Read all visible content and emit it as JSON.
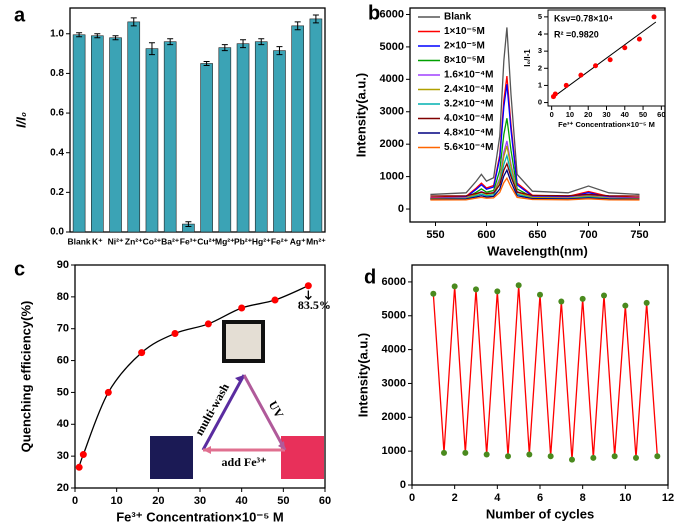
{
  "chart_data": [
    {
      "type": "bar",
      "panel": "a",
      "ylabel": "I/I₀",
      "categories": [
        "Blank",
        "K⁺",
        "Ni²⁺",
        "Zn²⁺",
        "Co²⁺",
        "Ba²⁺",
        "Fe³⁺",
        "Cu²⁺",
        "Mg²⁺",
        "Pb²⁺",
        "Hg²⁺",
        "Fe²⁺",
        "Ag⁺",
        "Mn²⁺"
      ],
      "values": [
        0.995,
        0.99,
        0.98,
        1.06,
        0.925,
        0.96,
        0.04,
        0.85,
        0.93,
        0.95,
        0.96,
        0.915,
        1.04,
        1.075
      ],
      "errors": [
        0.01,
        0.01,
        0.01,
        0.02,
        0.03,
        0.015,
        0.012,
        0.01,
        0.015,
        0.02,
        0.015,
        0.02,
        0.02,
        0.02
      ],
      "color": "#3ba3b5",
      "ylim": [
        0,
        1.13
      ],
      "yticks": [
        {
          "value": 0,
          "label": "0.0"
        },
        0.2,
        0.4,
        0.6,
        0.8,
        {
          "value": 1,
          "label": "1.0"
        }
      ]
    },
    {
      "type": "line",
      "panel": "b",
      "xlabel": "Wavelength(nm)",
      "ylabel": "Intensity(a.u.)",
      "legend": "upper left",
      "x": [
        545,
        580,
        590,
        595,
        600,
        607,
        613,
        617,
        620,
        624,
        630,
        645,
        680,
        700,
        720,
        750
      ],
      "series": [
        {
          "name": "Blank",
          "color": "#555555",
          "values": [
            450,
            500,
            860,
            1070,
            860,
            965,
            2250,
            4570,
            5600,
            3540,
            1070,
            550,
            500,
            710,
            500,
            450
          ]
        },
        {
          "name": "1×10⁻⁵M",
          "color": "#ff0000",
          "values": [
            350,
            390,
            650,
            800,
            650,
            725,
            1660,
            3350,
            4100,
            2600,
            800,
            425,
            390,
            540,
            390,
            350
          ]
        },
        {
          "name": "2×10⁻⁵M",
          "color": "#0000ff",
          "values": [
            330,
            365,
            610,
            750,
            610,
            680,
            1560,
            3150,
            3850,
            2440,
            750,
            400,
            365,
            505,
            365,
            330
          ]
        },
        {
          "name": "8×10⁻⁵M",
          "color": "#00a000",
          "values": [
            320,
            345,
            520,
            620,
            520,
            570,
            1190,
            2300,
            2800,
            1810,
            620,
            370,
            345,
            445,
            345,
            320
          ]
        },
        {
          "name": "1.6×10⁻⁴M",
          "color": "#a040ff",
          "values": [
            330,
            350,
            470,
            540,
            470,
            505,
            950,
            1750,
            2100,
            1390,
            540,
            365,
            350,
            420,
            350,
            330
          ]
        },
        {
          "name": "2.4×10⁻⁴M",
          "color": "#b0a000",
          "values": [
            320,
            335,
            450,
            515,
            450,
            485,
            890,
            1620,
            1950,
            1300,
            515,
            355,
            335,
            400,
            335,
            320
          ]
        },
        {
          "name": "3.2×10⁻⁴M",
          "color": "#00b0b0",
          "values": [
            300,
            315,
            410,
            460,
            410,
            435,
            775,
            1380,
            1650,
            1110,
            460,
            325,
            315,
            370,
            315,
            300
          ]
        },
        {
          "name": "4.0×10⁻⁴M",
          "color": "#800000",
          "values": [
            400,
            410,
            480,
            520,
            480,
            500,
            750,
            1200,
            1400,
            1000,
            520,
            420,
            410,
            450,
            410,
            400
          ]
        },
        {
          "name": "4.8×10⁻⁴M",
          "color": "#000080",
          "values": [
            300,
            310,
            370,
            410,
            370,
            390,
            615,
            1020,
            1200,
            840,
            410,
            320,
            310,
            345,
            310,
            300
          ]
        },
        {
          "name": "5.6×10⁻⁴M",
          "color": "#ff6600",
          "values": [
            280,
            285,
            335,
            360,
            335,
            345,
            515,
            815,
            950,
            680,
            360,
            295,
            285,
            315,
            285,
            280
          ]
        }
      ],
      "xlim": [
        525,
        775
      ],
      "xticks": [
        550,
        600,
        650,
        700,
        750
      ],
      "ylim": [
        -400,
        6200
      ],
      "yticks": [
        0,
        1000,
        2000,
        3000,
        4000,
        5000,
        6000
      ]
    },
    {
      "type": "scatter",
      "xlabel": "Fe³⁺ Concentration×10⁻⁵ M",
      "ylabel": "I₀/I-1",
      "x": [
        1,
        2,
        8,
        16,
        24,
        32,
        40,
        48,
        56
      ],
      "values": [
        0.35,
        0.5,
        1.0,
        1.6,
        2.15,
        2.5,
        3.2,
        3.7,
        5.0
      ],
      "color": "#ff0000",
      "fit": {
        "x": [
          0,
          57
        ],
        "values": [
          0.25,
          4.7
        ],
        "color": "#000000"
      },
      "annotations": [
        "Ksv=0.78×10⁴",
        "R² =0.9820"
      ],
      "xlim": [
        -2,
        62
      ],
      "xticks": [
        0,
        10,
        20,
        30,
        40,
        50,
        60
      ],
      "ylim": [
        -0.2,
        5.4
      ],
      "yticks": [
        0,
        1,
        2,
        3,
        4,
        5
      ]
    },
    {
      "type": "scatter",
      "panel": "c",
      "xlabel": "Fe³⁺ Concentration×10⁻⁵ M",
      "ylabel": "Quenching efficiency(%)",
      "x": [
        1,
        2,
        8,
        16,
        24,
        32,
        40,
        48,
        56
      ],
      "values": [
        26.5,
        30.5,
        50,
        62.5,
        68.5,
        71.5,
        76.5,
        79,
        83.5
      ],
      "color": "#ff0000",
      "curve": true,
      "annotations": [
        "83.5%",
        "multi-wash",
        "UV",
        "add Fe³⁺"
      ],
      "xlim": [
        0,
        60
      ],
      "xticks": [
        0,
        10,
        20,
        30,
        40,
        50,
        60
      ],
      "ylim": [
        20,
        90
      ],
      "yticks": [
        20,
        30,
        40,
        50,
        60,
        70,
        80,
        90
      ]
    },
    {
      "type": "line",
      "panel": "d",
      "xlabel": "Number of cycles",
      "ylabel": "Intensity(a.u.)",
      "x": [
        1,
        1.5,
        2,
        2.5,
        3,
        3.5,
        4,
        4.5,
        5,
        5.5,
        6,
        6.5,
        7,
        7.5,
        8,
        8.5,
        9,
        9.5,
        10,
        10.5,
        11,
        11.5
      ],
      "series": [
        {
          "color": "#ff0000",
          "marker_color": "#4a8a1e",
          "values": [
            5650,
            950,
            5870,
            950,
            5780,
            900,
            5720,
            850,
            5900,
            900,
            5620,
            850,
            5420,
            750,
            5500,
            800,
            5600,
            850,
            5300,
            800,
            5380,
            850
          ]
        }
      ],
      "xlim": [
        0,
        12
      ],
      "xticks": [
        0,
        2,
        4,
        6,
        8,
        10,
        12
      ],
      "ylim": [
        0,
        6500
      ],
      "yticks": [
        0,
        1000,
        2000,
        3000,
        4000,
        5000,
        6000
      ]
    }
  ]
}
